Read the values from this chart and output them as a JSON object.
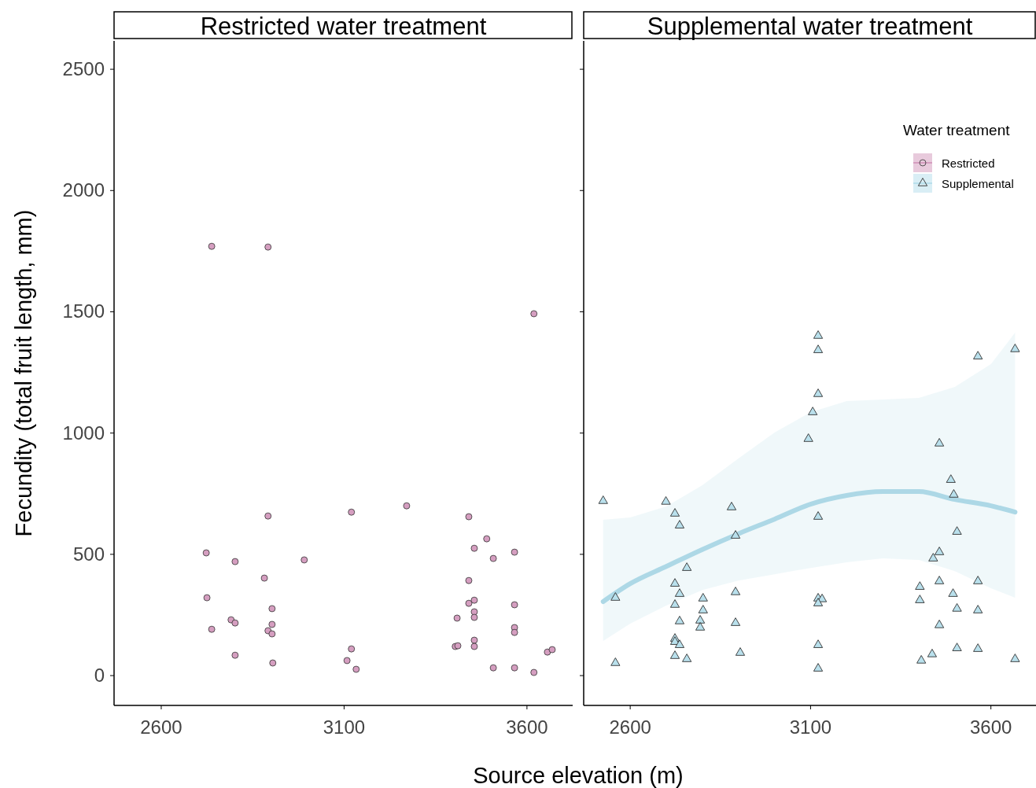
{
  "chart_data": [
    {
      "type": "scatter",
      "title": "Restricted water treatment",
      "xlabel": "Source elevation (m)",
      "ylabel": "Fecundity (total fruit length, mm)",
      "xlim": [
        2471,
        3725
      ],
      "ylim": [
        -123,
        2617
      ],
      "xticks": [
        2600,
        3100,
        3600
      ],
      "yticks": [
        0,
        500,
        1000,
        1500,
        2000,
        2500
      ],
      "series": [
        {
          "name": "Restricted",
          "color": "#d59ec0",
          "marker": "circle",
          "x": [
            2738,
            2892,
            3619,
            2723,
            2725,
            2738,
            2802,
            2791,
            2802,
            2802,
            2882,
            2892,
            2892,
            2903,
            2903,
            2903,
            2905,
            2991,
            3120,
            3120,
            3108,
            3133,
            3271,
            3441,
            3441,
            3490,
            3456,
            3508,
            3566,
            3441,
            3456,
            3456,
            3456,
            3409,
            3566,
            3566,
            3566,
            3456,
            3456,
            3404,
            3411,
            3508,
            3566,
            3619,
            3656,
            3669
          ],
          "values": [
            1770,
            1767,
            1492,
            506,
            321,
            191,
            470,
            230,
            217,
            84,
            402,
            658,
            185,
            276,
            211,
            172,
            52,
            477,
            674,
            110,
            62,
            26,
            700,
            655,
            392,
            564,
            525,
            483,
            509,
            298,
            311,
            263,
            240,
            237,
            292,
            198,
            178,
            146,
            120,
            120,
            123,
            32,
            32,
            13,
            97,
            107
          ]
        }
      ]
    },
    {
      "type": "scatter",
      "title": "Supplemental water treatment",
      "legend_title": "Water treatment",
      "legend": "top right",
      "tick_labels": "x",
      "xlim": [
        2471,
        3725
      ],
      "ylim": [
        -123,
        2617
      ],
      "xticks": [
        2600,
        3100,
        3600
      ],
      "yticks": [
        0,
        500,
        1000,
        1500,
        2000,
        2500
      ],
      "series": [
        {
          "name": "Supplemental",
          "color": "#b9e0ec",
          "marker": "triangle",
          "x": [
            2525,
            2559,
            2559,
            2699,
            2724,
            2737,
            2757,
            2724,
            2737,
            2724,
            2737,
            2724,
            2724,
            2737,
            2724,
            2757,
            2802,
            2802,
            2794,
            2794,
            2881,
            2892,
            2892,
            2892,
            2905,
            3094,
            3106,
            3121,
            3121,
            3121,
            3121,
            3121,
            3132,
            3121,
            3121,
            3121,
            3403,
            3403,
            3407,
            3437,
            3440,
            3457,
            3457,
            3457,
            3457,
            3489,
            3497,
            3495,
            3506,
            3506,
            3506,
            3564,
            3564,
            3564,
            3564,
            3667,
            3667
          ],
          "values": [
            720,
            321,
            52,
            717,
            668,
            619,
            444,
            379,
            337,
            292,
            224,
            152,
            139,
            126,
            81,
            68,
            318,
            269,
            227,
            198,
            694,
            577,
            344,
            217,
            94,
            976,
            1086,
            1161,
            1342,
            1401,
            655,
            318,
            315,
            298,
            126,
            29,
            366,
            311,
            62,
            88,
            483,
            509,
            389,
            208,
            957,
            807,
            746,
            337,
            593,
            276,
            113,
            1316,
            389,
            269,
            110,
            1346,
            68
          ]
        },
        {
          "type": "line",
          "color": "#add8e6",
          "x": [
            2525,
            2600,
            2700,
            2800,
            2900,
            3000,
            3100,
            3200,
            3300,
            3400,
            3500,
            3600,
            3667
          ],
          "values": [
            305,
            379,
            450,
            520,
            585,
            645,
            707,
            743,
            759,
            759,
            726,
            700,
            674
          ],
          "lower": [
            143,
            214,
            289,
            353,
            392,
            418,
            444,
            467,
            483,
            477,
            431,
            360,
            321
          ],
          "upper": [
            642,
            652,
            697,
            785,
            895,
            1002,
            1086,
            1132,
            1138,
            1145,
            1190,
            1284,
            1414
          ]
        }
      ]
    }
  ]
}
